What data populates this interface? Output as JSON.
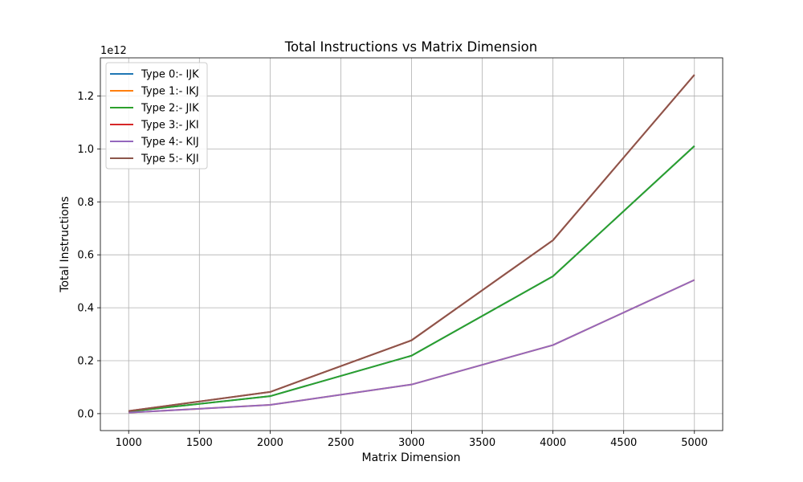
{
  "chart_data": {
    "type": "line",
    "title": "Total Instructions vs Matrix Dimension",
    "xlabel": "Matrix Dimension",
    "ylabel": "Total Instructions",
    "y_scale_label": "1e12",
    "x": [
      1000,
      2000,
      3000,
      4000,
      5000
    ],
    "xlim": [
      800,
      5200
    ],
    "ylim": [
      -0.064,
      1.344
    ],
    "x_ticks": [
      1000,
      1500,
      2000,
      2500,
      3000,
      3500,
      4000,
      4500,
      5000
    ],
    "y_ticks": [
      0.0,
      0.2,
      0.4,
      0.6,
      0.8,
      1.0,
      1.2
    ],
    "y_tick_labels": [
      "0.0",
      "0.2",
      "0.4",
      "0.6",
      "0.8",
      "1.0",
      "1.2"
    ],
    "grid": true,
    "legend_position": "top-left",
    "series": [
      {
        "name": "Type 0:- IJK",
        "color": "#1f77b4",
        "values": [
          0.008,
          0.066,
          0.219,
          0.519,
          1.011
        ]
      },
      {
        "name": "Type 1:- IKJ",
        "color": "#ff7f0e",
        "values": [
          0.004,
          0.033,
          0.11,
          0.259,
          0.505
        ]
      },
      {
        "name": "Type 2:- JIK",
        "color": "#2ca02c",
        "values": [
          0.008,
          0.066,
          0.219,
          0.519,
          1.011
        ]
      },
      {
        "name": "Type 3:- JKI",
        "color": "#d62728",
        "values": [
          0.01,
          0.082,
          0.277,
          0.655,
          1.28
        ]
      },
      {
        "name": "Type 4:- KIJ",
        "color": "#9467bd",
        "values": [
          0.004,
          0.033,
          0.11,
          0.259,
          0.505
        ]
      },
      {
        "name": "Type 5:- KJI",
        "color": "#8c564b",
        "values": [
          0.01,
          0.082,
          0.277,
          0.655,
          1.28
        ]
      }
    ]
  }
}
